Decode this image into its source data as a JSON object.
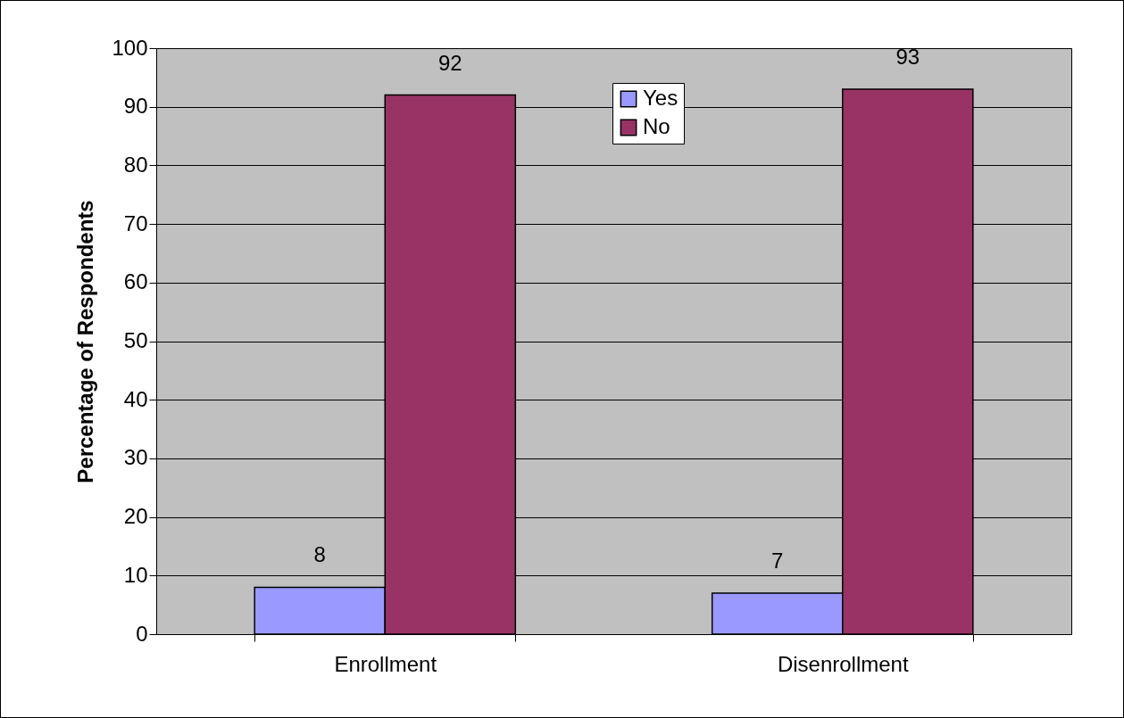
{
  "chart_data": {
    "type": "bar",
    "ylabel": "Percentage of Respondents",
    "categories": [
      "Enrollment",
      "Disenrollment"
    ],
    "series": [
      {
        "name": "Yes",
        "color": "#9999ff",
        "values": [
          8,
          7
        ]
      },
      {
        "name": "No",
        "color": "#993366",
        "values": [
          92,
          93
        ]
      }
    ],
    "ylim": [
      0,
      100
    ],
    "yticks": [
      0,
      10,
      20,
      30,
      40,
      50,
      60,
      70,
      80,
      90,
      100
    ],
    "grid": "y",
    "legend": "top",
    "data_labels": true
  }
}
